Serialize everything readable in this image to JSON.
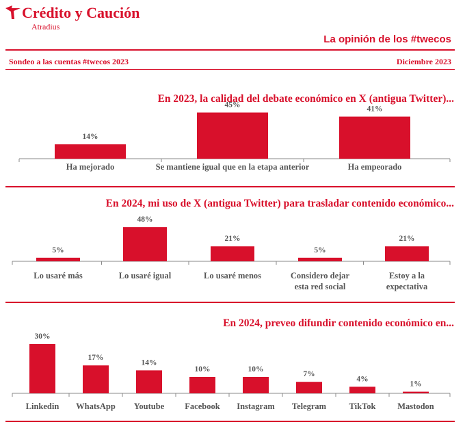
{
  "header": {
    "brand_name": "Crédito y Caución",
    "brand_sub": "Atradius",
    "section_title": "La opinión de los #twecos",
    "survey_label": "Sondeo a las cuentas #twecos 2023",
    "date_label": "Diciembre  2023"
  },
  "colors": {
    "accent": "#d8102b",
    "text": "#555555"
  },
  "chart_data": [
    {
      "type": "bar",
      "title": "En 2023,  la calidad del debate económico en X (antigua Twitter)...",
      "categories": [
        [
          "Ha mejorado"
        ],
        [
          "Se mantiene igual que en la etapa anterior"
        ],
        [
          "Ha empeorado"
        ]
      ],
      "values": [
        14,
        45,
        41
      ],
      "value_labels": [
        "14%",
        "45%",
        "41%"
      ],
      "ylim": [
        0,
        50
      ]
    },
    {
      "type": "bar",
      "title": "En 2024, mi uso de X (antigua Twitter) para trasladar contenido económico...",
      "categories": [
        [
          "Lo usaré más"
        ],
        [
          "Lo usaré igual"
        ],
        [
          "Lo usaré menos"
        ],
        [
          "Considero dejar",
          "esta red social"
        ],
        [
          "Estoy a la",
          "expectativa"
        ]
      ],
      "values": [
        5,
        48,
        21,
        5,
        21
      ],
      "value_labels": [
        "5%",
        "48%",
        "21%",
        "5%",
        "21%"
      ],
      "ylim": [
        0,
        50
      ]
    },
    {
      "type": "bar",
      "title": "En 2024, preveo difundir contenido económico en...",
      "categories": [
        [
          "Linkedin"
        ],
        [
          "WhatsApp"
        ],
        [
          "Youtube"
        ],
        [
          "Facebook"
        ],
        [
          "Instagram"
        ],
        [
          "Telegram"
        ],
        [
          "TikTok"
        ],
        [
          "Mastodon"
        ]
      ],
      "values": [
        30,
        17,
        14,
        10,
        10,
        7,
        4,
        1
      ],
      "value_labels": [
        "30%",
        "17%",
        "14%",
        "10%",
        "10%",
        "7%",
        "4%",
        "1%"
      ],
      "ylim": [
        0,
        30
      ]
    }
  ]
}
